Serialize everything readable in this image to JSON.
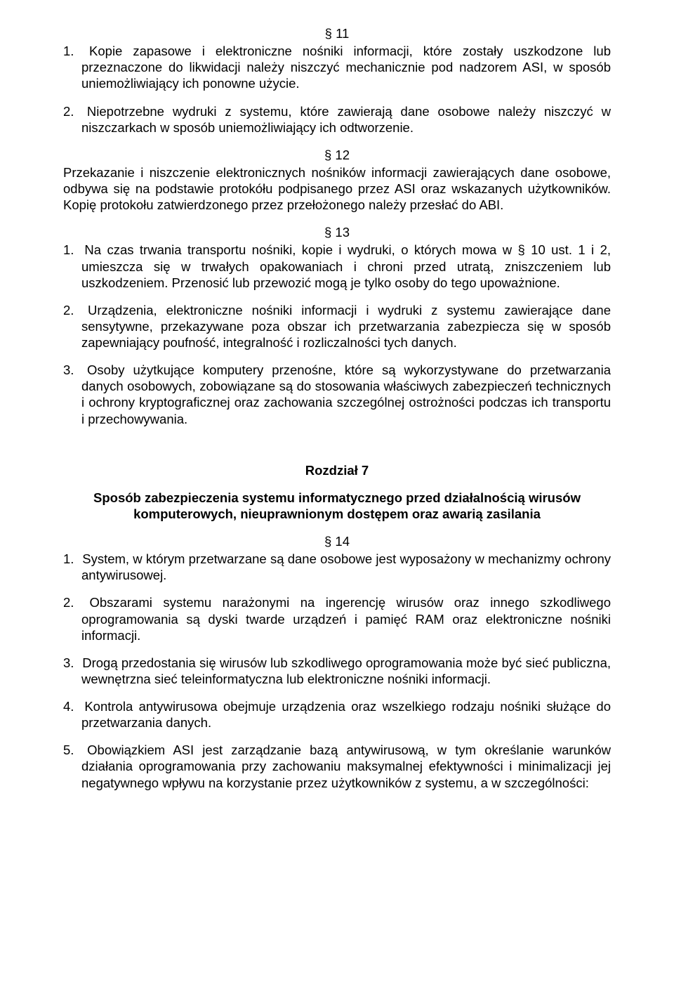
{
  "sec11": {
    "num": "§ 11",
    "items": [
      "Kopie zapasowe i elektroniczne nośniki informacji, które zostały uszkodzone lub przeznaczone do likwidacji należy niszczyć mechanicznie pod nadzorem ASI, w sposób uniemożliwiający ich ponowne użycie.",
      "Niepotrzebne wydruki z systemu, które zawierają dane osobowe należy niszczyć w niszczarkach w sposób uniemożliwiający ich odtworzenie."
    ]
  },
  "sec12": {
    "num": "§ 12",
    "text": "Przekazanie i niszczenie elektronicznych nośników informacji zawierających dane osobowe, odbywa się na podstawie protokółu podpisanego przez ASI oraz wskazanych użytkowników. Kopię protokołu zatwierdzonego przez przełożonego należy przesłać do ABI."
  },
  "sec13": {
    "num": "§ 13",
    "items": [
      "Na czas trwania transportu nośniki, kopie i wydruki, o których mowa w § 10 ust. 1 i 2, umieszcza się w trwałych opakowaniach i chroni przed utratą, zniszczeniem lub uszkodzeniem. Przenosić lub przewozić mogą je tylko osoby do tego upoważnione.",
      "Urządzenia, elektroniczne nośniki informacji i wydruki z systemu zawierające dane sensytywne, przekazywane poza obszar ich przetwarzania zabezpiecza się w sposób zapewniający poufność, integralność i rozliczalności tych danych.",
      "Osoby użytkujące komputery przenośne, które są wykorzystywane do przetwarzania danych osobowych, zobowiązane są do stosowania właściwych zabezpieczeń technicznych i ochrony kryptograficznej oraz zachowania szczególnej ostrożności podczas ich transportu i przechowywania."
    ]
  },
  "chapter7": {
    "label": "Rozdział 7",
    "title": "Sposób zabezpieczenia systemu informatycznego przed działalnością wirusów komputerowych, nieuprawnionym dostępem oraz awarią zasilania"
  },
  "sec14": {
    "num": "§ 14",
    "items": [
      "System, w którym przetwarzane są dane osobowe jest wyposażony w mechanizmy ochrony antywirusowej.",
      "Obszarami systemu narażonymi na ingerencję wirusów oraz innego szkodliwego oprogramowania są dyski twarde urządzeń i pamięć RAM oraz elektroniczne nośniki informacji.",
      "Drogą przedostania się wirusów lub szkodliwego oprogramowania może być sieć publiczna, wewnętrzna sieć teleinformatyczna lub elektroniczne nośniki informacji.",
      "Kontrola antywirusowa obejmuje urządzenia oraz wszelkiego rodzaju nośniki służące do przetwarzania danych.",
      "Obowiązkiem ASI jest zarządzanie bazą antywirusową, w tym określanie warunków działania oprogramowania przy zachowaniu maksymalnej efektywności i minimalizacji jej negatywnego wpływu na korzystanie przez użytkowników z systemu, a w szczególności:"
    ]
  }
}
